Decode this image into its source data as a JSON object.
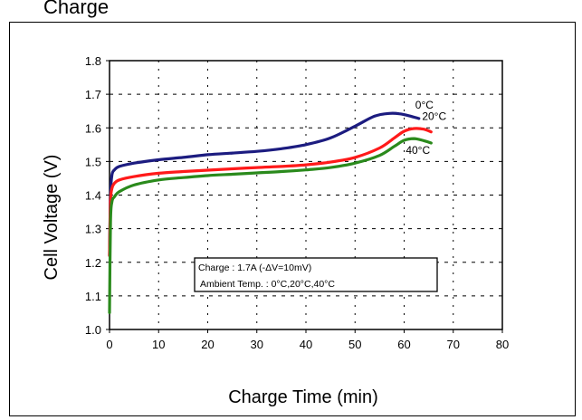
{
  "page": {
    "title": "Charge"
  },
  "chart_data": {
    "type": "line",
    "title": "",
    "xlabel": "Charge Time (min)",
    "ylabel": "Cell Voltage (V)",
    "xlim": [
      0,
      80
    ],
    "ylim": [
      1.0,
      1.8
    ],
    "xticks": [
      0,
      10,
      20,
      30,
      40,
      50,
      60,
      70,
      80
    ],
    "yticks": [
      1.0,
      1.1,
      1.2,
      1.3,
      1.4,
      1.5,
      1.6,
      1.7,
      1.8
    ],
    "xtick_labels": [
      "0",
      "10",
      "20",
      "30",
      "40",
      "50",
      "60",
      "70",
      "80"
    ],
    "ytick_labels": [
      "1.0",
      "1.1",
      "1.2",
      "1.3",
      "1.4",
      "1.5",
      "1.6",
      "1.7",
      "1.8"
    ],
    "grid": "dotted",
    "series": [
      {
        "name": "0°C",
        "color": "#1c1c80",
        "x": [
          0,
          0.2,
          0.5,
          1,
          2,
          5,
          10,
          15,
          20,
          25,
          30,
          35,
          40,
          45,
          50,
          54,
          57,
          59,
          61,
          63
        ],
        "y": [
          1.22,
          1.4,
          1.46,
          1.475,
          1.485,
          1.495,
          1.505,
          1.512,
          1.52,
          1.525,
          1.53,
          1.538,
          1.55,
          1.57,
          1.605,
          1.635,
          1.643,
          1.642,
          1.636,
          1.628
        ]
      },
      {
        "name": "20°C",
        "color": "#ff1a1a",
        "x": [
          0,
          0.2,
          0.5,
          1,
          2,
          5,
          10,
          15,
          20,
          25,
          30,
          35,
          40,
          45,
          50,
          55,
          58,
          60,
          62,
          64,
          65.5
        ],
        "y": [
          1.22,
          1.38,
          1.42,
          1.435,
          1.445,
          1.455,
          1.465,
          1.47,
          1.474,
          1.478,
          1.482,
          1.485,
          1.49,
          1.498,
          1.512,
          1.54,
          1.57,
          1.59,
          1.598,
          1.596,
          1.588
        ]
      },
      {
        "name": "40°C",
        "color": "#2a8a1c",
        "x": [
          0,
          0.2,
          0.5,
          1,
          2,
          5,
          10,
          15,
          20,
          25,
          30,
          35,
          40,
          45,
          50,
          55,
          58,
          60,
          62,
          64,
          65.5
        ],
        "y": [
          1.05,
          1.32,
          1.38,
          1.395,
          1.41,
          1.43,
          1.445,
          1.452,
          1.458,
          1.462,
          1.466,
          1.47,
          1.475,
          1.482,
          1.495,
          1.518,
          1.545,
          1.563,
          1.568,
          1.562,
          1.555
        ]
      }
    ],
    "annotation": {
      "lines": [
        "Charge : 1.7A (-ΔV=10mV)",
        "Ambient Temp. : 0°C,20°C,40°C"
      ]
    }
  }
}
